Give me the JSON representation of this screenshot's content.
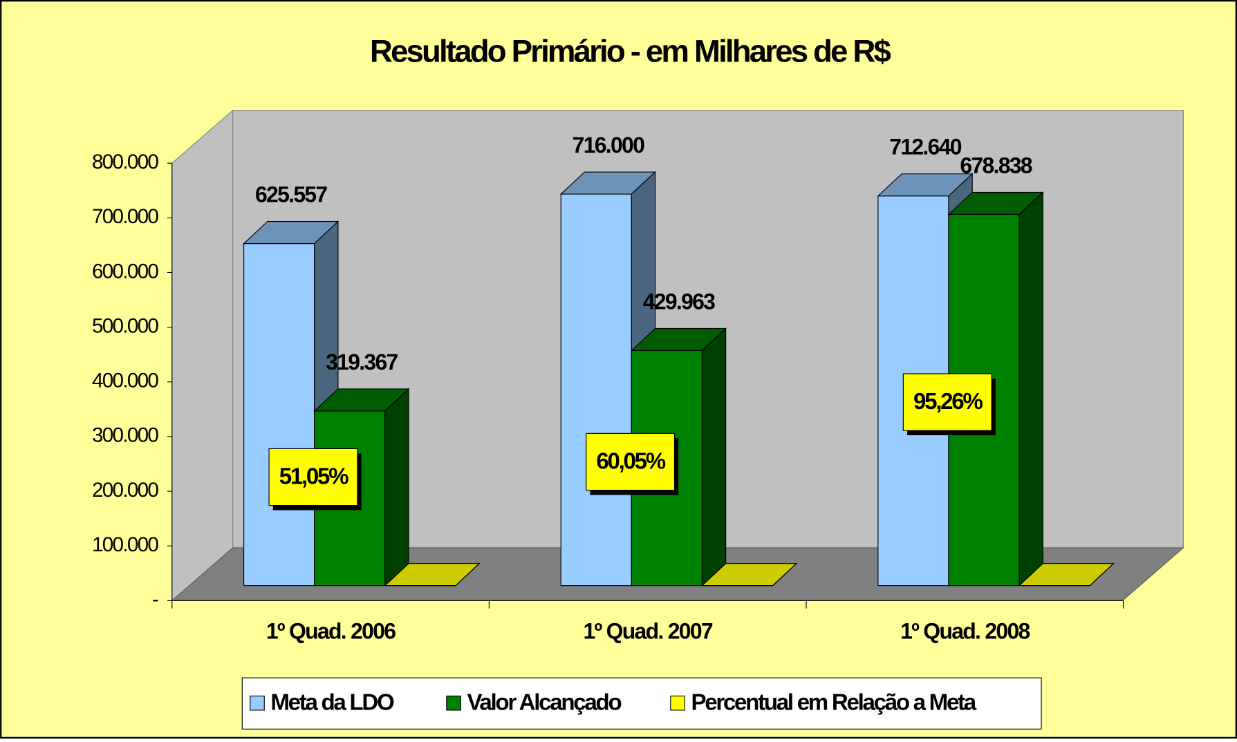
{
  "chart_data": {
    "type": "bar3d",
    "title": "Resultado Primário - em Milhares de R$",
    "categories": [
      "1º Quad. 2006",
      "1º Quad. 2007",
      "1º Quad. 2008"
    ],
    "series": [
      {
        "name": "Meta da LDO",
        "color": "#99ccff",
        "values": [
          625557,
          716000,
          712640
        ],
        "value_labels": [
          "625.557",
          "716.000",
          "712.640"
        ]
      },
      {
        "name": "Valor Alcançado",
        "color": "#008000",
        "values": [
          319367,
          429963,
          678838
        ],
        "value_labels": [
          "319.367",
          "429.963",
          "678.838"
        ]
      },
      {
        "name": "Percentual em Relação a Meta",
        "color": "#ffff00",
        "values": [
          51.05,
          60.05,
          95.26
        ],
        "value_labels": [
          "51,05%",
          "60,05%",
          "95,26%"
        ]
      }
    ],
    "ylim": [
      0,
      800000
    ],
    "yticks": [
      {
        "value": 0,
        "label": "-"
      },
      {
        "value": 100000,
        "label": "100.000"
      },
      {
        "value": 200000,
        "label": "200.000"
      },
      {
        "value": 300000,
        "label": "300.000"
      },
      {
        "value": 400000,
        "label": "400.000"
      },
      {
        "value": 500000,
        "label": "500.000"
      },
      {
        "value": 600000,
        "label": "600.000"
      },
      {
        "value": 700000,
        "label": "700.000"
      },
      {
        "value": 800000,
        "label": "800.000"
      }
    ],
    "legend": "bottom"
  }
}
